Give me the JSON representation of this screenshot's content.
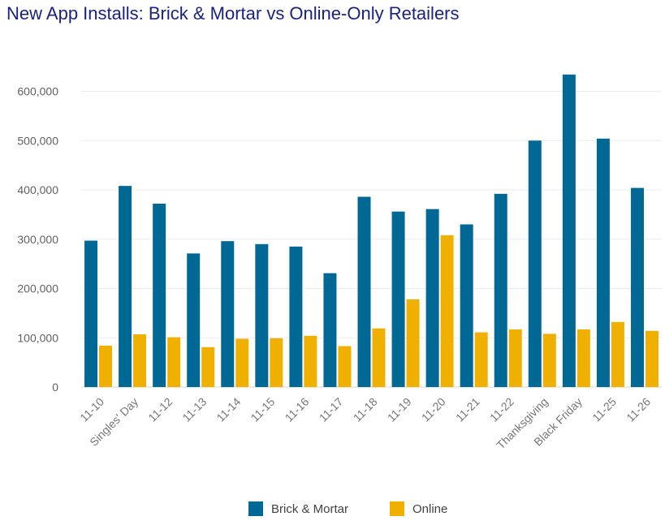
{
  "chart_data": {
    "type": "bar",
    "title": "New App Installs: Brick & Mortar vs Online-Only Retailers",
    "categories": [
      "11-10",
      "Singles' Day",
      "11-12",
      "11-13",
      "11-14",
      "11-15",
      "11-16",
      "11-17",
      "11-18",
      "11-19",
      "11-20",
      "11-21",
      "11-22",
      "Thanksgiving",
      "Black Friday",
      "11-25",
      "11-26"
    ],
    "series": [
      {
        "name": "Brick & Mortar",
        "color": "#006894",
        "values": [
          297000,
          408000,
          372000,
          271000,
          296000,
          290000,
          285000,
          231000,
          386000,
          356000,
          361000,
          330000,
          392000,
          500000,
          634000,
          504000,
          404000
        ]
      },
      {
        "name": "Online",
        "color": "#f0b000",
        "values": [
          84000,
          107000,
          101000,
          81000,
          98000,
          99000,
          104000,
          83000,
          119000,
          178000,
          308000,
          111000,
          117000,
          108000,
          117000,
          132000,
          114000
        ]
      }
    ],
    "y_ticks": [
      "0",
      "100,000",
      "200,000",
      "300,000",
      "400,000",
      "500,000",
      "600,000"
    ],
    "ylim": [
      0,
      650000
    ],
    "grid": true,
    "legend_position": "bottom"
  }
}
